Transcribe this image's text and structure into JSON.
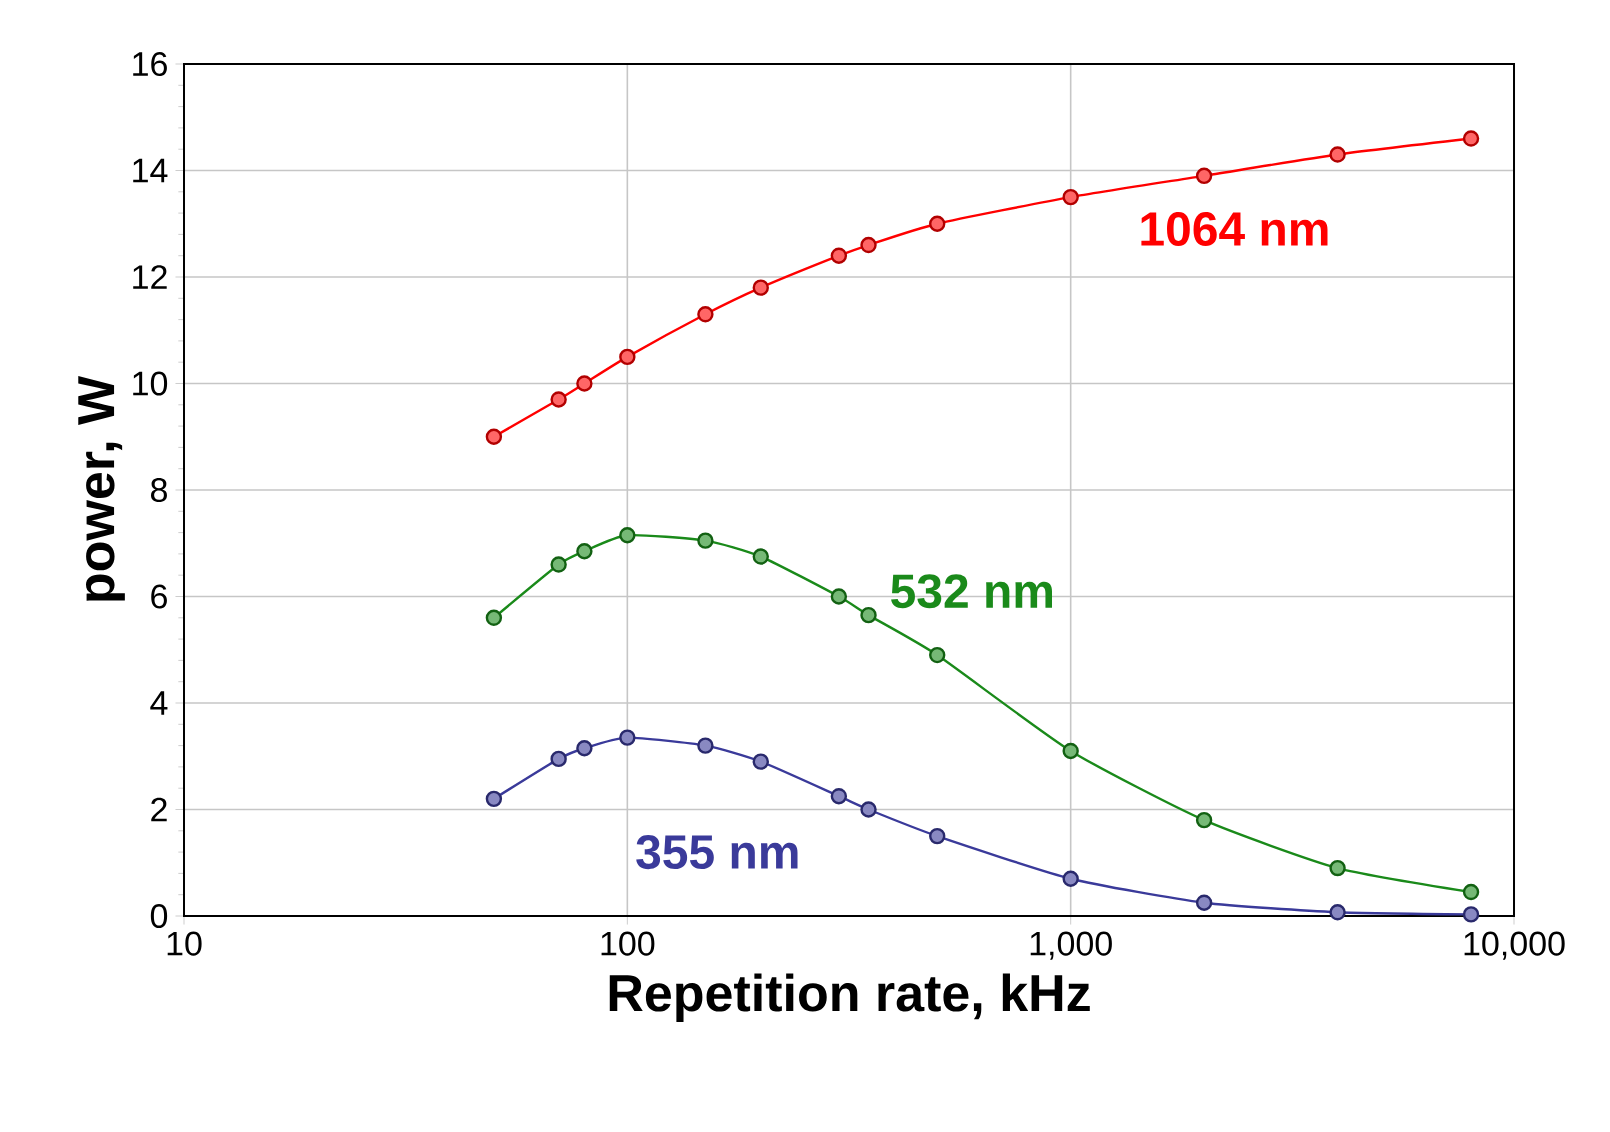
{
  "chart_data": {
    "type": "line",
    "xlabel": "Repetition rate, kHz",
    "ylabel": "power, W",
    "log": "x",
    "xlim": [
      10,
      10000
    ],
    "ylim": [
      0,
      16
    ],
    "xticks": [
      10,
      100,
      {
        "value": 1000,
        "label": "1,000"
      },
      {
        "value": 10000,
        "label": "10,000"
      }
    ],
    "yticks": [
      0,
      2,
      4,
      6,
      8,
      10,
      12,
      14,
      16
    ],
    "grid": true,
    "legend": false,
    "marker": "circle",
    "line_style": "solid",
    "x": [
      50,
      70,
      80,
      100,
      150,
      200,
      300,
      350,
      500,
      1000,
      2000,
      4000,
      8000
    ],
    "series": [
      {
        "name": "1064 nm",
        "color": "#ff0000",
        "values": [
          9.0,
          9.7,
          10.0,
          10.5,
          11.3,
          11.8,
          12.4,
          12.6,
          13.0,
          13.5,
          13.9,
          14.3,
          14.6
        ]
      },
      {
        "name": "532 nm",
        "color": "#1a8a1a",
        "values": [
          5.6,
          6.6,
          6.85,
          7.15,
          7.05,
          6.75,
          6.0,
          5.65,
          4.9,
          3.1,
          1.8,
          0.9,
          0.45
        ]
      },
      {
        "name": "355 nm",
        "color": "#3a3a9a",
        "values": [
          2.2,
          2.95,
          3.15,
          3.35,
          3.2,
          2.9,
          2.25,
          2.0,
          1.5,
          0.7,
          0.25,
          0.07,
          0.03
        ]
      }
    ]
  }
}
